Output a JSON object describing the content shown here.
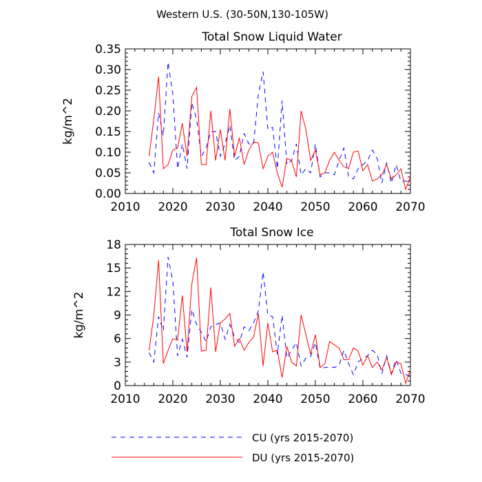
{
  "figure_title": "Western U.S. (30-50N,130-105W)",
  "legend": [
    {
      "label": "CU (yrs 2015-2070)",
      "color": "#0000ff",
      "dash": "dashed"
    },
    {
      "label": "DU (yrs 2015-2070)",
      "color": "#ff0000",
      "dash": "solid"
    }
  ],
  "chart_data": [
    {
      "type": "line",
      "title": "Total Snow Liquid Water",
      "xlabel": "",
      "ylabel": "kg/m^2",
      "xlim": [
        2010,
        2070
      ],
      "ylim": [
        0,
        0.35
      ],
      "xticks": [
        2010,
        2020,
        2030,
        2040,
        2050,
        2060,
        2070
      ],
      "yticks": [
        0.0,
        0.05,
        0.1,
        0.15,
        0.2,
        0.25,
        0.3,
        0.35
      ],
      "ytick_labels": [
        "0.00",
        "0.05",
        "0.10",
        "0.15",
        "0.20",
        "0.25",
        "0.30",
        "0.35"
      ],
      "x": [
        2015,
        2016,
        2017,
        2018,
        2019,
        2020,
        2021,
        2022,
        2023,
        2024,
        2025,
        2026,
        2027,
        2028,
        2029,
        2030,
        2031,
        2032,
        2033,
        2034,
        2035,
        2036,
        2037,
        2038,
        2039,
        2040,
        2041,
        2042,
        2043,
        2044,
        2045,
        2046,
        2047,
        2048,
        2049,
        2050,
        2051,
        2052,
        2053,
        2054,
        2055,
        2056,
        2057,
        2058,
        2059,
        2060,
        2061,
        2062,
        2063,
        2064,
        2065,
        2066,
        2067,
        2068,
        2069,
        2070
      ],
      "series": [
        {
          "name": "CU",
          "color": "#0000ff",
          "dash": "dashed",
          "values": [
            0.075,
            0.05,
            0.195,
            0.14,
            0.318,
            0.24,
            0.06,
            0.12,
            0.06,
            0.22,
            0.18,
            0.09,
            0.11,
            0.15,
            0.15,
            0.09,
            0.12,
            0.165,
            0.08,
            0.09,
            0.145,
            0.12,
            0.12,
            0.24,
            0.295,
            0.155,
            0.16,
            0.06,
            0.225,
            0.07,
            0.08,
            0.12,
            0.045,
            0.06,
            0.05,
            0.12,
            0.04,
            0.05,
            0.05,
            0.045,
            0.08,
            0.11,
            0.04,
            0.035,
            0.06,
            0.07,
            0.08,
            0.105,
            0.085,
            0.025,
            0.075,
            0.025,
            0.07,
            0.03,
            0.03,
            0.025
          ]
        },
        {
          "name": "DU",
          "color": "#ff0000",
          "dash": "solid",
          "values": [
            0.09,
            0.18,
            0.283,
            0.06,
            0.07,
            0.105,
            0.11,
            0.17,
            0.09,
            0.235,
            0.257,
            0.07,
            0.07,
            0.2,
            0.08,
            0.155,
            0.08,
            0.205,
            0.09,
            0.135,
            0.07,
            0.105,
            0.125,
            0.122,
            0.06,
            0.09,
            0.1,
            0.05,
            0.015,
            0.085,
            0.08,
            0.04,
            0.2,
            0.155,
            0.08,
            0.105,
            0.045,
            0.05,
            0.08,
            0.1,
            0.08,
            0.065,
            0.06,
            0.1,
            0.103,
            0.055,
            0.07,
            0.03,
            0.035,
            0.045,
            0.07,
            0.035,
            0.045,
            0.06,
            0.01,
            0.04
          ]
        }
      ]
    },
    {
      "type": "line",
      "title": "Total Snow Ice",
      "xlabel": "",
      "ylabel": "kg/m^2",
      "xlim": [
        2010,
        2070
      ],
      "ylim": [
        0,
        18
      ],
      "xticks": [
        2010,
        2020,
        2030,
        2040,
        2050,
        2060,
        2070
      ],
      "yticks": [
        0,
        3,
        6,
        9,
        12,
        15,
        18
      ],
      "ytick_labels": [
        "0",
        "3",
        "6",
        "9",
        "12",
        "15",
        "18"
      ],
      "x": [
        2015,
        2016,
        2017,
        2018,
        2019,
        2020,
        2021,
        2022,
        2023,
        2024,
        2025,
        2026,
        2027,
        2028,
        2029,
        2030,
        2031,
        2032,
        2033,
        2034,
        2035,
        2036,
        2037,
        2038,
        2039,
        2040,
        2041,
        2042,
        2043,
        2044,
        2045,
        2046,
        2047,
        2048,
        2049,
        2050,
        2051,
        2052,
        2053,
        2054,
        2055,
        2056,
        2057,
        2058,
        2059,
        2060,
        2061,
        2062,
        2063,
        2064,
        2065,
        2066,
        2067,
        2068,
        2069,
        2070
      ],
      "series": [
        {
          "name": "CU",
          "color": "#0000ff",
          "dash": "dashed",
          "values": [
            4.2,
            3.0,
            8.8,
            7.0,
            16.4,
            13.3,
            3.8,
            5.9,
            3.6,
            9.7,
            7.8,
            6.8,
            5.6,
            7.5,
            7.8,
            8.0,
            5.9,
            7.8,
            6.2,
            5.5,
            7.5,
            7.0,
            8.0,
            9.5,
            14.5,
            9.0,
            8.8,
            4.0,
            9.0,
            3.5,
            4.5,
            5.5,
            2.5,
            3.5,
            3.7,
            5.5,
            2.2,
            2.3,
            2.4,
            2.3,
            2.6,
            4.5,
            2.8,
            1.4,
            3.0,
            3.5,
            3.8,
            4.5,
            4.0,
            1.5,
            3.8,
            1.5,
            3.3,
            1.6,
            1.4,
            1.2
          ]
        },
        {
          "name": "DU",
          "color": "#ff0000",
          "dash": "solid",
          "values": [
            4.5,
            9.0,
            16.0,
            2.8,
            4.5,
            6.0,
            5.8,
            11.5,
            4.3,
            13.0,
            16.3,
            4.4,
            4.5,
            12.5,
            4.3,
            8.0,
            8.5,
            9.2,
            5.0,
            6.0,
            4.5,
            5.5,
            6.2,
            9.2,
            2.5,
            8.0,
            4.3,
            4.5,
            1.0,
            5.0,
            3.0,
            2.5,
            9.0,
            6.5,
            4.0,
            6.5,
            2.3,
            2.8,
            5.6,
            5.2,
            4.8,
            3.3,
            3.3,
            4.8,
            4.4,
            2.6,
            3.8,
            2.3,
            3.0,
            2.0,
            3.6,
            1.4,
            3.0,
            2.8,
            0.3,
            2.0
          ]
        }
      ]
    }
  ]
}
